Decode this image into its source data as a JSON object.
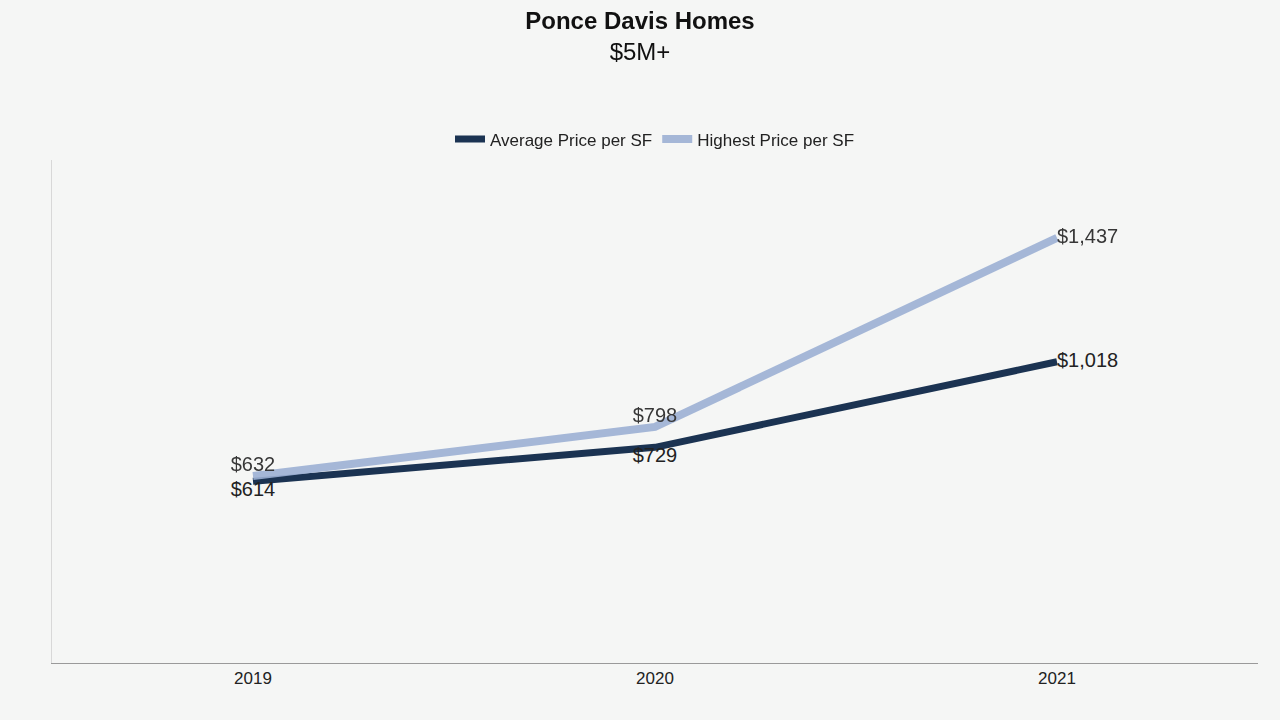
{
  "chart_data": {
    "type": "line",
    "title": "Ponce Davis Homes",
    "subtitle": "$5M+",
    "categories": [
      "2019",
      "2020",
      "2021"
    ],
    "series": [
      {
        "name": "Average Price per SF",
        "color": "#1b3352",
        "values": [
          614,
          729,
          1018
        ],
        "value_labels": [
          "$614",
          "$729",
          "$1,018"
        ]
      },
      {
        "name": "Highest Price per SF",
        "color": "#9cb0d4",
        "values": [
          632,
          798,
          1437
        ],
        "value_labels": [
          "$632",
          "$798",
          "$1,437"
        ]
      }
    ],
    "ylim": [
      0,
      1700
    ],
    "grid": false,
    "legend": "top",
    "data_labels": true,
    "tick_labels": "x"
  }
}
